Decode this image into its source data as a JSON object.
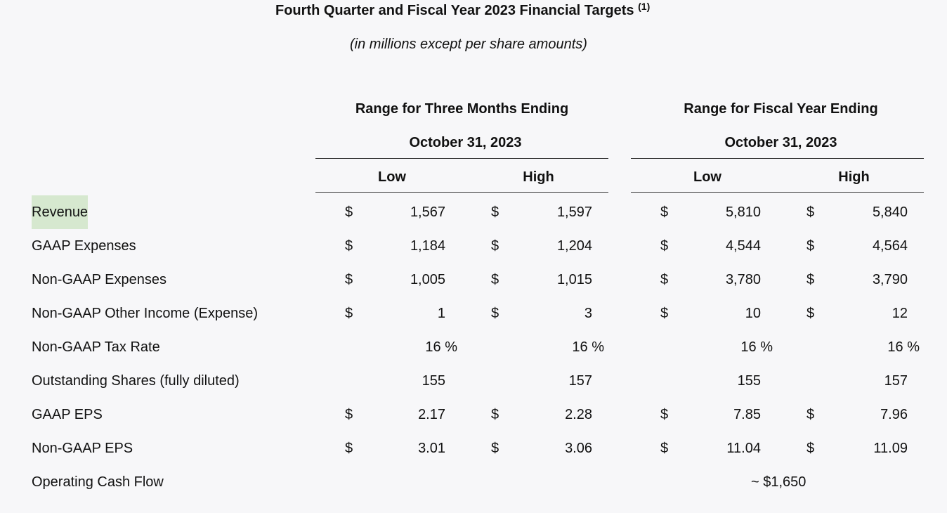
{
  "title": "Fourth Quarter and Fiscal Year 2023 Financial Targets",
  "title_footnote": "(1)",
  "subtitle": "(in millions except per share amounts)",
  "groups": [
    {
      "line1": "Range for Three Months Ending",
      "line2": "October 31, 2023",
      "low": "Low",
      "high": "High"
    },
    {
      "line1": "Range for Fiscal Year Ending",
      "line2": "October 31, 2023",
      "low": "Low",
      "high": "High"
    }
  ],
  "highlight_color": "#d6e8cf",
  "rows": [
    {
      "label": "Revenue",
      "q_low_sym": "$",
      "q_low": "1,567",
      "q_high_sym": "$",
      "q_high": "1,597",
      "y_low_sym": "$",
      "y_low": "5,810",
      "y_high_sym": "$",
      "y_high": "5,840"
    },
    {
      "label": "GAAP Expenses",
      "q_low_sym": "$",
      "q_low": "1,184",
      "q_high_sym": "$",
      "q_high": "1,204",
      "y_low_sym": "$",
      "y_low": "4,544",
      "y_high_sym": "$",
      "y_high": "4,564"
    },
    {
      "label": "Non-GAAP Expenses",
      "q_low_sym": "$",
      "q_low": "1,005",
      "q_high_sym": "$",
      "q_high": "1,015",
      "y_low_sym": "$",
      "y_low": "3,780",
      "y_high_sym": "$",
      "y_high": "3,790"
    },
    {
      "label": "Non-GAAP Other Income (Expense)",
      "q_low_sym": "$",
      "q_low": "1",
      "q_high_sym": "$",
      "q_high": "3",
      "y_low_sym": "$",
      "y_low": "10",
      "y_high_sym": "$",
      "y_high": "12"
    },
    {
      "label": "Non-GAAP Tax Rate",
      "q_low_sym": "",
      "q_low": "16 %",
      "q_high_sym": "",
      "q_high": "16 %",
      "y_low_sym": "",
      "y_low": "16 %",
      "y_high_sym": "",
      "y_high": "16 %"
    },
    {
      "label": "Outstanding Shares (fully diluted)",
      "q_low_sym": "",
      "q_low": "155",
      "q_high_sym": "",
      "q_high": "157",
      "y_low_sym": "",
      "y_low": "155",
      "y_high_sym": "",
      "y_high": "157"
    },
    {
      "label": "GAAP EPS",
      "q_low_sym": "$",
      "q_low": "2.17",
      "q_high_sym": "$",
      "q_high": "2.28",
      "y_low_sym": "$",
      "y_low": "7.85",
      "y_high_sym": "$",
      "y_high": "7.96"
    },
    {
      "label": "Non-GAAP EPS",
      "q_low_sym": "$",
      "q_low": "3.01",
      "q_high_sym": "$",
      "q_high": "3.06",
      "y_low_sym": "$",
      "y_low": "11.04",
      "y_high_sym": "$",
      "y_high": "11.09"
    }
  ],
  "cash_flow": {
    "label": "Operating Cash Flow",
    "value": "~ $1,650"
  }
}
